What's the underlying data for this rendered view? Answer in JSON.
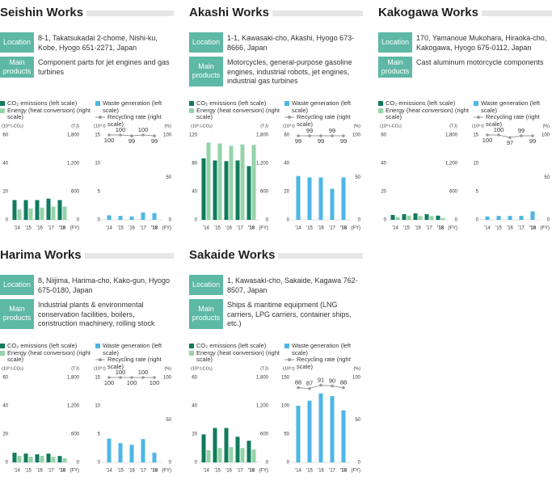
{
  "works": [
    {
      "name": "Seishin Works",
      "location_label": "Location",
      "location": "8-1, Takatsukadai 2-chome, Nishi-ku, Kobe, Hyogo 651-2271, Japan",
      "products_label": "Main products",
      "products": "Component parts for jet engines and gas turbines"
    },
    {
      "name": "Akashi Works",
      "location_label": "Location",
      "location": "1-1, Kawasaki-cho, Akashi, Hyogo 673-8666, Japan",
      "products_label": "Main products",
      "products": "Motorcycles, general-purpose gasoline engines, industrial robots, jet engines, industrial gas turbines"
    },
    {
      "name": "Kakogawa Works",
      "location_label": "Location",
      "location": "170, Yamanoue Mukohara, Hiraoka-cho, Kakogawa, Hyogo 675-0112, Japan",
      "products_label": "Main products",
      "products": "Cast aluminum motorcycle components"
    },
    {
      "name": "Harima Works",
      "location_label": "Location",
      "location": "8, Niijima, Harima-cho, Kako-gun, Hyogo 675-0180, Japan",
      "products_label": "Main products",
      "products": "Industrial plants & environmental conservation facilities, boilers, construction machinery, rolling stock"
    },
    {
      "name": "Sakaide Works",
      "location_label": "Location",
      "location": "1, Kawasaki-cho, Sakaide, Kagawa 762-8507, Japan",
      "products_label": "Main products",
      "products": "Ships & maritime equipment (LNG carriers, LPG carriers, container ships, etc.)"
    }
  ],
  "chart_data": [
    {
      "type": "bar",
      "categories": [
        "'14",
        "'15",
        "'16",
        "'17",
        "'18"
      ],
      "x_label": "(FY)",
      "y_label": "(10³ t-CO₂)",
      "y2_label": "(TJ)",
      "ylim": [
        0,
        60
      ],
      "yticks": [
        0,
        20,
        40,
        60
      ],
      "y2lim": [
        0,
        1800
      ],
      "y2ticks": [
        0,
        600,
        {
          "value": 1200,
          "label": "1,200"
        },
        {
          "value": 1800,
          "label": "1,800"
        }
      ],
      "series": [
        {
          "name": "CO₂ emissions (left scale)",
          "color": "#127a5e",
          "values": [
            14,
            14,
            14,
            15,
            14
          ]
        },
        {
          "name": "Energy (heat conversion) (right scale)",
          "color": "#94d3a8",
          "values": [
            220,
            240,
            260,
            280,
            280
          ],
          "axis": "y2"
        }
      ]
    },
    {
      "type": "bar",
      "categories": [
        "'14",
        "'15",
        "'16",
        "'17",
        "'18"
      ],
      "x_label": "(FY)",
      "y_label": "(10³ t)",
      "y2_label": "(%)",
      "ylim": [
        0,
        15
      ],
      "yticks": [
        0,
        5,
        10,
        15
      ],
      "y2lim": [
        0,
        100
      ],
      "y2ticks": [
        0,
        50,
        100
      ],
      "series": [
        {
          "name": "Waste generation (left scale)",
          "color": "#4db6e6",
          "values": [
            0.8,
            0.7,
            0.6,
            1.3,
            1.2
          ]
        },
        {
          "name": "Recycling rate (right scale)",
          "color": "#9a9a9a",
          "type": "line",
          "values": [
            100,
            100,
            99,
            100,
            99
          ],
          "axis": "y2"
        }
      ]
    },
    {
      "type": "bar",
      "categories": [
        "'14",
        "'15",
        "'16",
        "'17",
        "'18"
      ],
      "x_label": "(FY)",
      "y_label": "(10³ t-CO₂)",
      "y2_label": "(TJ)",
      "ylim": [
        0,
        120
      ],
      "yticks": [
        0,
        40,
        80,
        120
      ],
      "y2lim": [
        0,
        1800
      ],
      "y2ticks": [
        0,
        600,
        {
          "value": 1200,
          "label": "1,200"
        },
        {
          "value": 1800,
          "label": "1,800"
        }
      ],
      "series": [
        {
          "name": "CO₂ emissions (left scale)",
          "color": "#127a5e",
          "values": [
            87,
            84,
            83,
            84,
            76
          ]
        },
        {
          "name": "Energy (heat conversion) (right scale)",
          "color": "#94d3a8",
          "values": [
            1640,
            1620,
            1570,
            1600,
            1590
          ],
          "axis": "y2"
        }
      ]
    },
    {
      "type": "bar",
      "categories": [
        "'14",
        "'15",
        "'16",
        "'17",
        "'18"
      ],
      "x_label": "(FY)",
      "y_label": "(10³ t)",
      "y2_label": "(%)",
      "ylim": [
        0,
        60
      ],
      "yticks": [
        0,
        20,
        40,
        60
      ],
      "y2lim": [
        0,
        100
      ],
      "y2ticks": [
        0,
        50,
        100
      ],
      "series": [
        {
          "name": "Waste generation (left scale)",
          "color": "#4db6e6",
          "values": [
            31,
            30,
            30,
            22,
            30
          ]
        },
        {
          "name": "Recycling rate (right scale)",
          "color": "#9a9a9a",
          "type": "line",
          "values": [
            99,
            99,
            99,
            99,
            99
          ],
          "axis": "y2"
        }
      ]
    },
    {
      "type": "bar",
      "categories": [
        "'14",
        "'15",
        "'16",
        "'17",
        "'18"
      ],
      "x_label": "(FY)",
      "y_label": "(10³ t-CO₂)",
      "y2_label": "(TJ)",
      "ylim": [
        0,
        60
      ],
      "yticks": [
        0,
        20,
        40,
        60
      ],
      "y2lim": [
        0,
        1800
      ],
      "y2ticks": [
        0,
        600,
        {
          "value": 1200,
          "label": "1,200"
        },
        {
          "value": 1800,
          "label": "1,800"
        }
      ],
      "series": [
        {
          "name": "CO₂ emissions (left scale)",
          "color": "#127a5e",
          "values": [
            3.5,
            4,
            4.6,
            4,
            3
          ]
        },
        {
          "name": "Energy (heat conversion) (right scale)",
          "color": "#94d3a8",
          "values": [
            60,
            90,
            80,
            80,
            40
          ],
          "axis": "y2"
        }
      ]
    },
    {
      "type": "bar",
      "categories": [
        "'14",
        "'15",
        "'16",
        "'17",
        "'18"
      ],
      "x_label": "(FY)",
      "y_label": "(10³ t)",
      "y2_label": "(%)",
      "ylim": [
        0,
        15
      ],
      "yticks": [
        0,
        5,
        10,
        15
      ],
      "y2lim": [
        0,
        100
      ],
      "y2ticks": [
        0,
        50,
        100
      ],
      "series": [
        {
          "name": "Waste generation (left scale)",
          "color": "#4db6e6",
          "values": [
            0.6,
            0.7,
            0.7,
            0.7,
            1.5
          ]
        },
        {
          "name": "Recycling rate (right scale)",
          "color": "#9a9a9a",
          "type": "line",
          "values": [
            100,
            100,
            97,
            99,
            99
          ],
          "axis": "y2"
        }
      ]
    },
    {
      "type": "bar",
      "categories": [
        "'14",
        "'15",
        "'16",
        "'17",
        "'18"
      ],
      "x_label": "(FY)",
      "y_label": "(10³ t-CO₂)",
      "y2_label": "(TJ)",
      "ylim": [
        0,
        60
      ],
      "yticks": [
        0,
        20,
        40,
        60
      ],
      "y2lim": [
        0,
        1800
      ],
      "y2ticks": [
        0,
        600,
        {
          "value": 1200,
          "label": "1,200"
        },
        {
          "value": 1800,
          "label": "1,800"
        }
      ],
      "series": [
        {
          "name": "CO₂ emissions (left scale)",
          "color": "#127a5e",
          "values": [
            6.8,
            6.2,
            5.7,
            6.2,
            4.5
          ]
        },
        {
          "name": "Energy (heat conversion) (right scale)",
          "color": "#94d3a8",
          "values": [
            136,
            119,
            136,
            119,
            85
          ],
          "axis": "y2"
        }
      ]
    },
    {
      "type": "bar",
      "categories": [
        "'14",
        "'15",
        "'16",
        "'17",
        "'18"
      ],
      "x_label": "(FY)",
      "y_label": "(10³ t)",
      "y2_label": "(%)",
      "ylim": [
        0,
        15
      ],
      "yticks": [
        0,
        5,
        10,
        15
      ],
      "y2lim": [
        0,
        100
      ],
      "y2ticks": [
        0,
        50,
        100
      ],
      "series": [
        {
          "name": "Waste generation (left scale)",
          "color": "#4db6e6",
          "values": [
            4.2,
            3.4,
            3.1,
            4.1,
            1.7
          ]
        },
        {
          "name": "Recycling rate (right scale)",
          "color": "#9a9a9a",
          "type": "line",
          "values": [
            100,
            100,
            100,
            100,
            100
          ],
          "axis": "y2"
        }
      ]
    },
    {
      "type": "bar",
      "categories": [
        "'14",
        "'15",
        "'16",
        "'17",
        "'18"
      ],
      "x_label": "(FY)",
      "y_label": "(10³ t-CO₂)",
      "y2_label": "(TJ)",
      "ylim": [
        0,
        60
      ],
      "yticks": [
        0,
        20,
        40,
        60
      ],
      "y2lim": [
        0,
        1800
      ],
      "y2ticks": [
        0,
        600,
        {
          "value": 1200,
          "label": "1,200"
        },
        {
          "value": 1800,
          "label": "1,800"
        }
      ],
      "series": [
        {
          "name": "CO₂ emissions (left scale)",
          "color": "#127a5e",
          "values": [
            19.8,
            24.3,
            24.3,
            18.1,
            15.3
          ]
        },
        {
          "name": "Energy (heat conversion) (right scale)",
          "color": "#94d3a8",
          "values": [
            255,
            305,
            323,
            305,
            272
          ],
          "axis": "y2"
        }
      ]
    },
    {
      "type": "bar",
      "categories": [
        "'14",
        "'15",
        "'16",
        "'17",
        "'18"
      ],
      "x_label": "(FY)",
      "y_label": "(10³ t)",
      "y2_label": "(%)",
      "ylim": [
        0,
        150
      ],
      "yticks": [
        0,
        50,
        100,
        150
      ],
      "y2lim": [
        0,
        100
      ],
      "y2ticks": [
        0,
        50,
        100
      ],
      "series": [
        {
          "name": "Waste generation (left scale)",
          "color": "#4db6e6",
          "values": [
            100,
            109,
            122,
            117,
            92
          ]
        },
        {
          "name": "Recycling rate (right scale)",
          "color": "#9a9a9a",
          "type": "line",
          "values": [
            88,
            87,
            91,
            90,
            88
          ],
          "axis": "y2"
        }
      ]
    }
  ]
}
